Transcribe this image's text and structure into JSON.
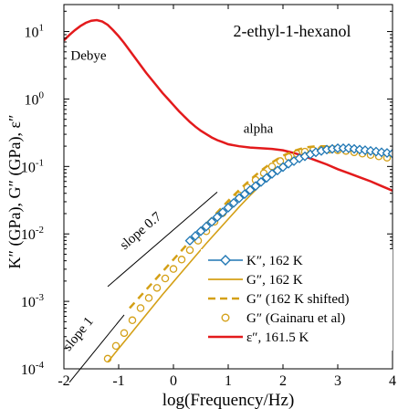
{
  "chart_data": {
    "type": "line",
    "title": "2-ethyl-1-hexanol",
    "xlabel": "log(Frequency/Hz)",
    "ylabel": "K″ (GPa), G″ (GPa), ε″",
    "xlim": [
      -2,
      4
    ],
    "ylim_log10": [
      -4,
      1.4
    ],
    "y_scale": "log",
    "x_ticks": [
      "-2",
      "-1",
      "0",
      "1",
      "2",
      "3",
      "4"
    ],
    "y_ticks": [
      {
        "exp": -4,
        "base": "10",
        "sup": "-4"
      },
      {
        "exp": -3,
        "base": "10",
        "sup": "-3"
      },
      {
        "exp": -2,
        "base": "10",
        "sup": "-2"
      },
      {
        "exp": -1,
        "base": "10",
        "sup": "-1"
      },
      {
        "exp": 0,
        "base": "10",
        "sup": "0"
      },
      {
        "exp": 1,
        "base": "10",
        "sup": "1"
      }
    ],
    "colors": {
      "K": "#1f77b4",
      "G": "#d4a017",
      "eps": "#e31a1c",
      "guide": "#000000"
    },
    "series": [
      {
        "name": "K″, 162 K",
        "style": "line+diamond",
        "color": "#1f77b4",
        "x": [
          0.3,
          0.4,
          0.5,
          0.6,
          0.7,
          0.8,
          0.9,
          1.0,
          1.1,
          1.2,
          1.3,
          1.4,
          1.5,
          1.6,
          1.7,
          1.8,
          1.9,
          2.0,
          2.1,
          2.2,
          2.3,
          2.4,
          2.5,
          2.6,
          2.7,
          2.8,
          2.9,
          3.0,
          3.1,
          3.2,
          3.3,
          3.4,
          3.5,
          3.6,
          3.7,
          3.8,
          3.9,
          4.0
        ],
        "log10_y": [
          -2.1,
          -2.03,
          -1.96,
          -1.89,
          -1.82,
          -1.75,
          -1.68,
          -1.61,
          -1.54,
          -1.47,
          -1.41,
          -1.35,
          -1.29,
          -1.23,
          -1.17,
          -1.11,
          -1.06,
          -1.01,
          -0.96,
          -0.92,
          -0.88,
          -0.85,
          -0.82,
          -0.79,
          -0.77,
          -0.75,
          -0.74,
          -0.73,
          -0.73,
          -0.73,
          -0.74,
          -0.75,
          -0.76,
          -0.77,
          -0.78,
          -0.79,
          -0.8,
          -0.81
        ]
      },
      {
        "name": "G″, 162 K",
        "style": "line",
        "color": "#d4a017",
        "x": [
          -1.2,
          -1.0,
          -0.8,
          -0.6,
          -0.4,
          -0.2,
          0.0,
          0.2,
          0.4,
          0.6,
          0.8,
          1.0,
          1.2,
          1.4,
          1.6,
          1.8,
          2.0,
          2.2,
          2.4,
          2.6,
          2.8,
          3.0,
          3.2,
          3.4,
          3.6,
          3.8,
          4.0
        ],
        "log10_y": [
          -3.9,
          -3.7,
          -3.5,
          -3.3,
          -3.1,
          -2.9,
          -2.71,
          -2.52,
          -2.33,
          -2.14,
          -1.96,
          -1.78,
          -1.6,
          -1.43,
          -1.27,
          -1.12,
          -0.99,
          -0.89,
          -0.81,
          -0.76,
          -0.74,
          -0.74,
          -0.75,
          -0.77,
          -0.79,
          -0.81,
          -0.83
        ]
      },
      {
        "name": "G″ (162 K shifted)",
        "style": "dashed",
        "color": "#d4a017",
        "x": [
          -0.8,
          -0.6,
          -0.4,
          -0.2,
          0.0,
          0.2,
          0.4,
          0.6,
          0.8,
          1.0,
          1.2,
          1.4,
          1.6,
          1.8,
          2.0,
          2.2,
          2.4,
          2.6,
          2.8,
          3.0,
          3.2,
          3.4,
          3.6,
          3.8,
          4.0
        ],
        "log10_y": [
          -3.1,
          -2.92,
          -2.74,
          -2.56,
          -2.38,
          -2.2,
          -2.02,
          -1.85,
          -1.68,
          -1.51,
          -1.35,
          -1.2,
          -1.06,
          -0.94,
          -0.84,
          -0.77,
          -0.72,
          -0.7,
          -0.7,
          -0.71,
          -0.73,
          -0.75,
          -0.77,
          -0.79,
          -0.81
        ]
      },
      {
        "name": "G″ (Gainaru et al)",
        "style": "open-circle",
        "color": "#d4a017",
        "x": [
          -1.2,
          -1.05,
          -0.9,
          -0.75,
          -0.6,
          -0.45,
          -0.3,
          -0.15,
          0.0,
          0.15,
          0.3,
          0.45,
          0.6,
          0.75,
          0.9,
          1.05,
          1.2,
          1.35,
          1.5,
          1.65,
          1.8,
          1.95,
          2.1,
          2.25,
          2.4,
          2.55,
          2.7,
          2.85,
          3.0,
          3.15,
          3.3,
          3.45,
          3.6,
          3.75,
          3.9
        ],
        "log10_y": [
          -3.85,
          -3.66,
          -3.47,
          -3.28,
          -3.1,
          -2.95,
          -2.8,
          -2.66,
          -2.52,
          -2.38,
          -2.24,
          -2.1,
          -1.96,
          -1.82,
          -1.69,
          -1.56,
          -1.43,
          -1.31,
          -1.2,
          -1.1,
          -1.0,
          -0.92,
          -0.86,
          -0.81,
          -0.78,
          -0.76,
          -0.75,
          -0.75,
          -0.76,
          -0.77,
          -0.79,
          -0.81,
          -0.83,
          -0.85,
          -0.87
        ]
      },
      {
        "name": "ε″, 161.5 K",
        "style": "line",
        "color": "#e31a1c",
        "x": [
          -2.0,
          -1.9,
          -1.8,
          -1.7,
          -1.6,
          -1.5,
          -1.4,
          -1.3,
          -1.2,
          -1.1,
          -1.0,
          -0.9,
          -0.8,
          -0.7,
          -0.6,
          -0.5,
          -0.4,
          -0.3,
          -0.2,
          -0.1,
          0.0,
          0.1,
          0.2,
          0.3,
          0.4,
          0.5,
          0.6,
          0.7,
          0.8,
          0.9,
          1.0,
          1.2,
          1.4,
          1.6,
          1.8,
          2.0,
          2.2,
          2.4,
          2.6,
          2.8,
          3.0,
          3.2,
          3.4,
          3.6,
          3.8,
          4.0
        ],
        "log10_y": [
          0.87,
          0.95,
          1.02,
          1.08,
          1.13,
          1.16,
          1.17,
          1.15,
          1.1,
          1.02,
          0.93,
          0.83,
          0.72,
          0.61,
          0.5,
          0.39,
          0.29,
          0.19,
          0.09,
          0.0,
          -0.09,
          -0.18,
          -0.26,
          -0.34,
          -0.41,
          -0.47,
          -0.52,
          -0.57,
          -0.61,
          -0.64,
          -0.67,
          -0.7,
          -0.72,
          -0.73,
          -0.74,
          -0.76,
          -0.8,
          -0.85,
          -0.91,
          -0.97,
          -1.04,
          -1.1,
          -1.16,
          -1.22,
          -1.29,
          -1.36
        ]
      }
    ],
    "guide_lines": [
      {
        "name": "slope 0.7",
        "label": "slope 0.7",
        "x": [
          -1.2,
          0.8
        ],
        "log10_y": [
          -2.78,
          -1.38
        ]
      },
      {
        "name": "slope 1",
        "label": "slope 1",
        "x": [
          -1.9,
          -0.9
        ],
        "log10_y": [
          -4.2,
          -3.2
        ]
      }
    ],
    "annotations": [
      {
        "text": "Debye",
        "x": -1.55,
        "log10_y": 0.58
      },
      {
        "text": "alpha",
        "x": 1.55,
        "log10_y": -0.5
      }
    ],
    "legend": {
      "placement": "bottom-right"
    },
    "grid": false
  }
}
